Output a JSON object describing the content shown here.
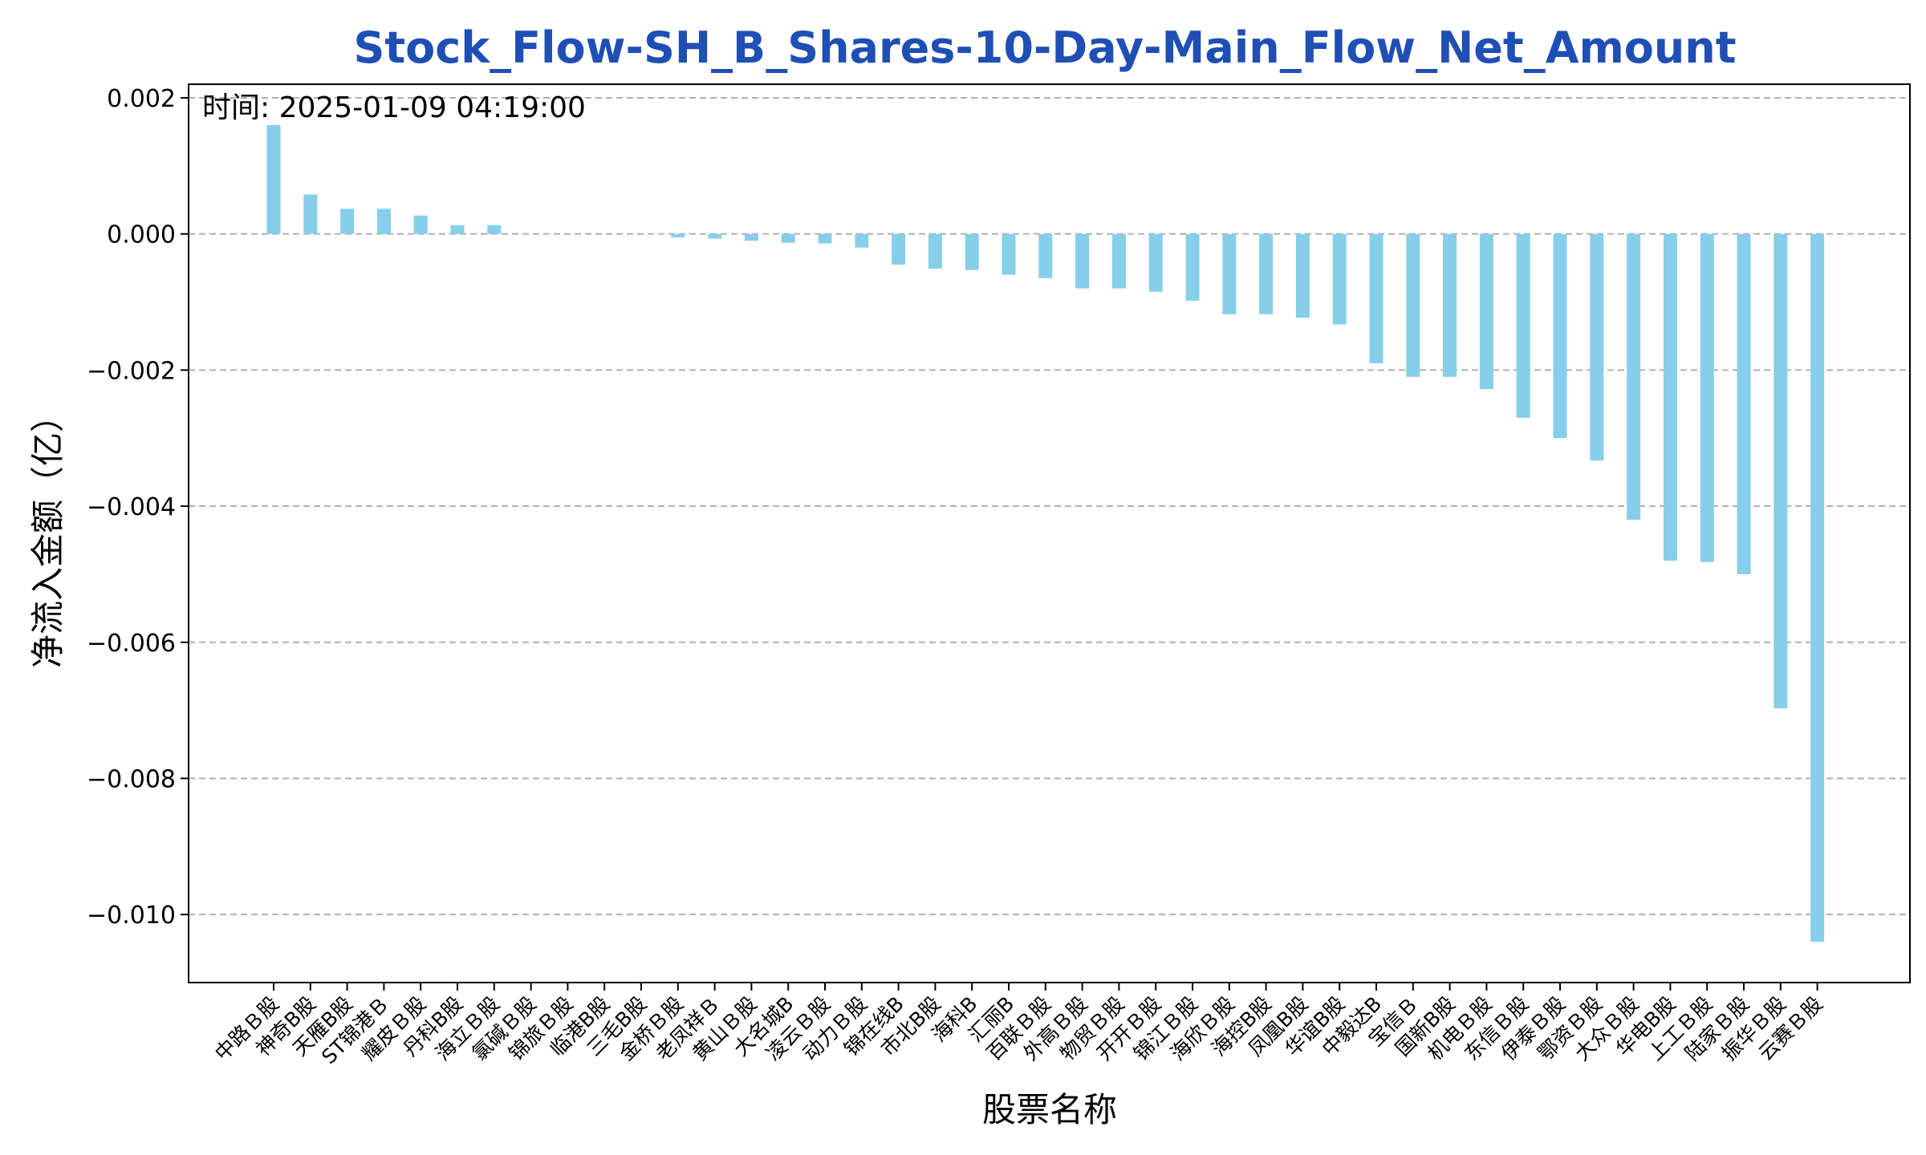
{
  "chart_data": {
    "type": "bar",
    "title": "Stock_Flow-SH_B_Shares-10-Day-Main_Flow_Net_Amount",
    "annotation": "时间: 2025-01-09 04:19:00",
    "xlabel": "股票名称",
    "ylabel": "净流入金额（亿）",
    "ylim": [
      -0.011,
      0.0022
    ],
    "yticks": [
      0.002,
      0.0,
      -0.002,
      -0.004,
      -0.006,
      -0.008,
      -0.01
    ],
    "ytick_labels": [
      "0.002",
      "0.000",
      "−0.002",
      "−0.004",
      "−0.006",
      "−0.008",
      "−0.010"
    ],
    "grid": "y-dashed",
    "bar_color": "#87ceeb",
    "grid_color": "#b0b0b0",
    "title_color": "#1f4fb4",
    "categories": [
      "中路Ｂ股",
      "神奇B股",
      "天雁B股",
      "ST锦港Ｂ",
      "耀皮Ｂ股",
      "丹科B股",
      "海立Ｂ股",
      "氯碱Ｂ股",
      "锦旅Ｂ股",
      "临港B股",
      "三毛B股",
      "金桥Ｂ股",
      "老凤祥Ｂ",
      "黄山Ｂ股",
      "大名城B",
      "凌云Ｂ股",
      "动力Ｂ股",
      "锦在线B",
      "市北B股",
      "海科B",
      "汇丽B",
      "百联Ｂ股",
      "外高Ｂ股",
      "物贸Ｂ股",
      "开开Ｂ股",
      "锦江Ｂ股",
      "海欣Ｂ股",
      "海控B股",
      "凤凰B股",
      "华谊B股",
      "中毅达B",
      "宝信Ｂ",
      "国新B股",
      "机电Ｂ股",
      "东信Ｂ股",
      "伊泰Ｂ股",
      "鄂资Ｂ股",
      "大众Ｂ股",
      "华电B股",
      "上工Ｂ股",
      "陆家Ｂ股",
      "振华Ｂ股",
      "云赛Ｂ股"
    ],
    "values": [
      0.0016,
      0.00058,
      0.00037,
      0.00037,
      0.00027,
      0.00013,
      0.00013,
      0.0,
      0.0,
      0.0,
      0.0,
      -5e-05,
      -7e-05,
      -0.0001,
      -0.00013,
      -0.00014,
      -0.0002,
      -0.00045,
      -0.00051,
      -0.00053,
      -0.0006,
      -0.00065,
      -0.0008,
      -0.0008,
      -0.00085,
      -0.00098,
      -0.00118,
      -0.00118,
      -0.00123,
      -0.00133,
      -0.0019,
      -0.0021,
      -0.0021,
      -0.00228,
      -0.0027,
      -0.003,
      -0.00333,
      -0.0042,
      -0.0048,
      -0.00482,
      -0.005,
      -0.00697,
      -0.0104
    ]
  }
}
